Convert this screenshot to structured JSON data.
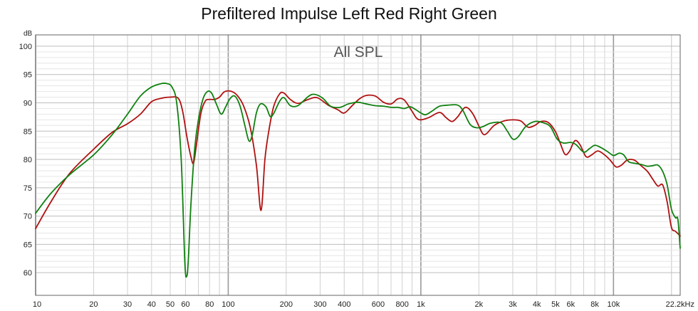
{
  "chart_data": {
    "type": "line",
    "title": "Prefiltered Impulse Left Red Right Green",
    "annotation": "All SPL",
    "ylabel": "dB",
    "x_scale": "log",
    "xlim": [
      10,
      22200
    ],
    "ylim": [
      56,
      102
    ],
    "grid": true,
    "x_ticks": [
      {
        "value": 10,
        "label": "10"
      },
      {
        "value": 20,
        "label": "20"
      },
      {
        "value": 30,
        "label": "30"
      },
      {
        "value": 40,
        "label": "40"
      },
      {
        "value": 50,
        "label": "50"
      },
      {
        "value": 60,
        "label": "60"
      },
      {
        "value": 80,
        "label": "80"
      },
      {
        "value": 100,
        "label": "100"
      },
      {
        "value": 200,
        "label": "200"
      },
      {
        "value": 300,
        "label": "300"
      },
      {
        "value": 400,
        "label": "400"
      },
      {
        "value": 600,
        "label": "600"
      },
      {
        "value": 800,
        "label": "800"
      },
      {
        "value": 1000,
        "label": "1k"
      },
      {
        "value": 2000,
        "label": "2k"
      },
      {
        "value": 3000,
        "label": "3k"
      },
      {
        "value": 4000,
        "label": "4k"
      },
      {
        "value": 5000,
        "label": "5k"
      },
      {
        "value": 6000,
        "label": "6k"
      },
      {
        "value": 8000,
        "label": "8k"
      },
      {
        "value": 10000,
        "label": "10k"
      },
      {
        "value": 22200,
        "label": "22.2kHz"
      }
    ],
    "y_ticks": [
      60,
      65,
      70,
      75,
      80,
      85,
      90,
      95,
      100
    ],
    "series": [
      {
        "color": "#b01010",
        "points": [
          [
            10,
            67.8
          ],
          [
            12,
            72.5
          ],
          [
            15,
            77.5
          ],
          [
            20,
            81.8
          ],
          [
            25,
            84.8
          ],
          [
            30,
            86.3
          ],
          [
            35,
            88
          ],
          [
            40,
            90.2
          ],
          [
            45,
            90.8
          ],
          [
            50,
            91
          ],
          [
            55,
            90.8
          ],
          [
            58,
            88.5
          ],
          [
            61,
            84
          ],
          [
            64,
            80.5
          ],
          [
            66,
            79.3
          ],
          [
            68,
            82
          ],
          [
            72,
            88
          ],
          [
            76,
            90.3
          ],
          [
            80,
            90.6
          ],
          [
            85,
            90.6
          ],
          [
            90,
            91
          ],
          [
            95,
            91.9
          ],
          [
            100,
            92.1
          ],
          [
            106,
            91.9
          ],
          [
            112,
            91.2
          ],
          [
            120,
            89.5
          ],
          [
            130,
            85.7
          ],
          [
            140,
            79
          ],
          [
            148,
            71
          ],
          [
            155,
            80
          ],
          [
            162,
            84.8
          ],
          [
            172,
            89.3
          ],
          [
            185,
            91.6
          ],
          [
            195,
            91.7
          ],
          [
            210,
            90.6
          ],
          [
            230,
            89.9
          ],
          [
            260,
            90.6
          ],
          [
            290,
            90.9
          ],
          [
            330,
            89.6
          ],
          [
            370,
            88.8
          ],
          [
            400,
            88.2
          ],
          [
            440,
            89.5
          ],
          [
            480,
            90.7
          ],
          [
            520,
            91.3
          ],
          [
            580,
            91.2
          ],
          [
            640,
            90.1
          ],
          [
            700,
            89.8
          ],
          [
            760,
            90.7
          ],
          [
            820,
            90.5
          ],
          [
            900,
            88.5
          ],
          [
            950,
            87.3
          ],
          [
            1000,
            87
          ],
          [
            1100,
            87.4
          ],
          [
            1250,
            88.3
          ],
          [
            1350,
            87.4
          ],
          [
            1450,
            86.7
          ],
          [
            1550,
            87.5
          ],
          [
            1700,
            89.2
          ],
          [
            1850,
            88.2
          ],
          [
            2000,
            85.9
          ],
          [
            2100,
            84.5
          ],
          [
            2200,
            84.6
          ],
          [
            2400,
            86
          ],
          [
            2700,
            86.8
          ],
          [
            3000,
            87
          ],
          [
            3300,
            86.8
          ],
          [
            3600,
            85.7
          ],
          [
            3900,
            86
          ],
          [
            4200,
            86.7
          ],
          [
            4600,
            86.5
          ],
          [
            5000,
            84.9
          ],
          [
            5300,
            82.8
          ],
          [
            5600,
            80.9
          ],
          [
            5900,
            81.4
          ],
          [
            6300,
            83.3
          ],
          [
            6700,
            82.6
          ],
          [
            7200,
            80.5
          ],
          [
            7700,
            80.8
          ],
          [
            8300,
            81.5
          ],
          [
            9000,
            80.8
          ],
          [
            9600,
            79.9
          ],
          [
            10300,
            78.7
          ],
          [
            11000,
            79
          ],
          [
            11800,
            79.9
          ],
          [
            12800,
            79.9
          ],
          [
            13800,
            79
          ],
          [
            15000,
            77.9
          ],
          [
            16000,
            76.5
          ],
          [
            17000,
            75.3
          ],
          [
            18000,
            75.5
          ],
          [
            19000,
            72.5
          ],
          [
            20000,
            68
          ],
          [
            21000,
            67.3
          ],
          [
            22200,
            66.5
          ]
        ]
      },
      {
        "color": "#108010",
        "points": [
          [
            10,
            70.5
          ],
          [
            12,
            74
          ],
          [
            15,
            77.3
          ],
          [
            20,
            80.8
          ],
          [
            25,
            84.4
          ],
          [
            30,
            88
          ],
          [
            35,
            91.2
          ],
          [
            40,
            92.8
          ],
          [
            45,
            93.4
          ],
          [
            48,
            93.4
          ],
          [
            51,
            92.8
          ],
          [
            54,
            90
          ],
          [
            57,
            80
          ],
          [
            59.5,
            62
          ],
          [
            60.8,
            59.3
          ],
          [
            62,
            62
          ],
          [
            64,
            72
          ],
          [
            67,
            82
          ],
          [
            70,
            87
          ],
          [
            74,
            90.7
          ],
          [
            78,
            92
          ],
          [
            82,
            91.7
          ],
          [
            87,
            89.7
          ],
          [
            92,
            88
          ],
          [
            97,
            89.3
          ],
          [
            102,
            90.7
          ],
          [
            108,
            91.2
          ],
          [
            115,
            89.5
          ],
          [
            122,
            86
          ],
          [
            128,
            83.3
          ],
          [
            133,
            84.2
          ],
          [
            140,
            88.2
          ],
          [
            147,
            89.8
          ],
          [
            157,
            89.3
          ],
          [
            165,
            87.6
          ],
          [
            172,
            88.1
          ],
          [
            185,
            90.3
          ],
          [
            195,
            90.9
          ],
          [
            210,
            89.5
          ],
          [
            230,
            89.5
          ],
          [
            260,
            91.1
          ],
          [
            280,
            91.5
          ],
          [
            310,
            90.8
          ],
          [
            340,
            89.4
          ],
          [
            380,
            89.2
          ],
          [
            420,
            89.8
          ],
          [
            470,
            90.1
          ],
          [
            520,
            89.8
          ],
          [
            580,
            89.5
          ],
          [
            640,
            89.4
          ],
          [
            700,
            89.2
          ],
          [
            760,
            89.2
          ],
          [
            820,
            89
          ],
          [
            880,
            89.3
          ],
          [
            940,
            88.8
          ],
          [
            1000,
            88.2
          ],
          [
            1060,
            87.9
          ],
          [
            1150,
            88.6
          ],
          [
            1250,
            89.4
          ],
          [
            1400,
            89.6
          ],
          [
            1550,
            89.6
          ],
          [
            1650,
            88.7
          ],
          [
            1800,
            86.2
          ],
          [
            1950,
            85.6
          ],
          [
            2100,
            85.8
          ],
          [
            2300,
            86.4
          ],
          [
            2600,
            86.5
          ],
          [
            2800,
            85.1
          ],
          [
            3000,
            83.6
          ],
          [
            3200,
            84
          ],
          [
            3500,
            85.8
          ],
          [
            3900,
            86.7
          ],
          [
            4300,
            86.5
          ],
          [
            4700,
            85.8
          ],
          [
            5100,
            83.6
          ],
          [
            5500,
            82.9
          ],
          [
            6000,
            83
          ],
          [
            6400,
            82.6
          ],
          [
            7000,
            81.3
          ],
          [
            7500,
            81.9
          ],
          [
            8000,
            82.5
          ],
          [
            8600,
            82.1
          ],
          [
            9300,
            81.4
          ],
          [
            10000,
            80.7
          ],
          [
            10700,
            81.1
          ],
          [
            11300,
            80.8
          ],
          [
            12000,
            79.6
          ],
          [
            13000,
            79.3
          ],
          [
            14000,
            79.1
          ],
          [
            15000,
            78.8
          ],
          [
            16000,
            78.9
          ],
          [
            17000,
            79
          ],
          [
            18000,
            77.9
          ],
          [
            19000,
            75.5
          ],
          [
            20000,
            71.2
          ],
          [
            21000,
            69.7
          ],
          [
            21600,
            69.4
          ],
          [
            22200,
            64.3
          ]
        ]
      }
    ]
  }
}
